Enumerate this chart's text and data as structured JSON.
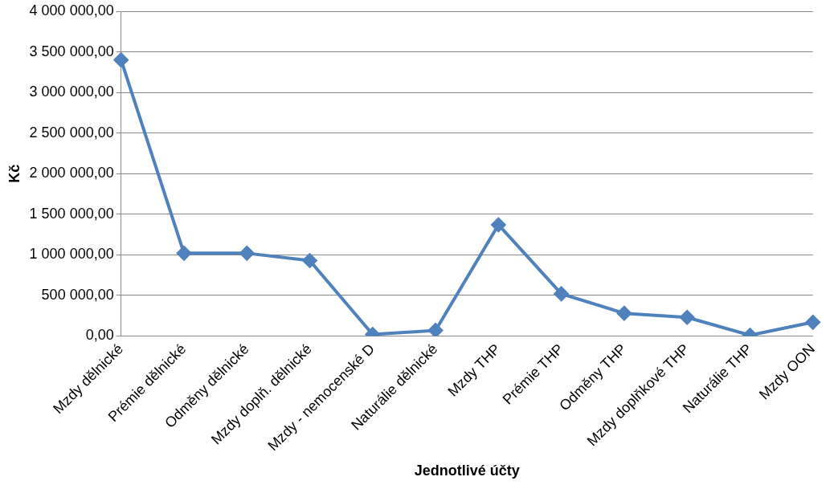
{
  "chart_data": {
    "type": "line",
    "xlabel": "Jednotlivé účty",
    "ylabel": "Kč",
    "categories": [
      "Mzdy dělnické",
      "Prémie dělnické",
      "Odměny dělnické",
      "Mzdy doplň. dělnické",
      "Mzdy - nemocenské D",
      "Naturálie dělnické",
      "Mzdy THP",
      "Prémie THP",
      "Odměny THP",
      "Mzdy doplňkové THP",
      "Naturálie THP",
      "Mzdy OON"
    ],
    "series": [
      {
        "color": "#4f81bd",
        "values": [
          3400000,
          1020000,
          1020000,
          930000,
          20000,
          70000,
          1370000,
          520000,
          280000,
          230000,
          10000,
          170000
        ]
      }
    ],
    "ylim": [
      0,
      4000000
    ],
    "yticks": [
      {
        "value": 0,
        "label": "0,00"
      },
      {
        "value": 500000,
        "label": "500 000,00"
      },
      {
        "value": 1000000,
        "label": "1 000 000,00"
      },
      {
        "value": 1500000,
        "label": "1 500 000,00"
      },
      {
        "value": 2000000,
        "label": "2 000 000,00"
      },
      {
        "value": 2500000,
        "label": "2 500 000,00"
      },
      {
        "value": 3000000,
        "label": "3 000 000,00"
      },
      {
        "value": 3500000,
        "label": "3 500 000,00"
      },
      {
        "value": 4000000,
        "label": "4 000 000,00"
      }
    ],
    "grid": "y",
    "legend": false,
    "marker": "diamond",
    "line_style": "solid"
  }
}
